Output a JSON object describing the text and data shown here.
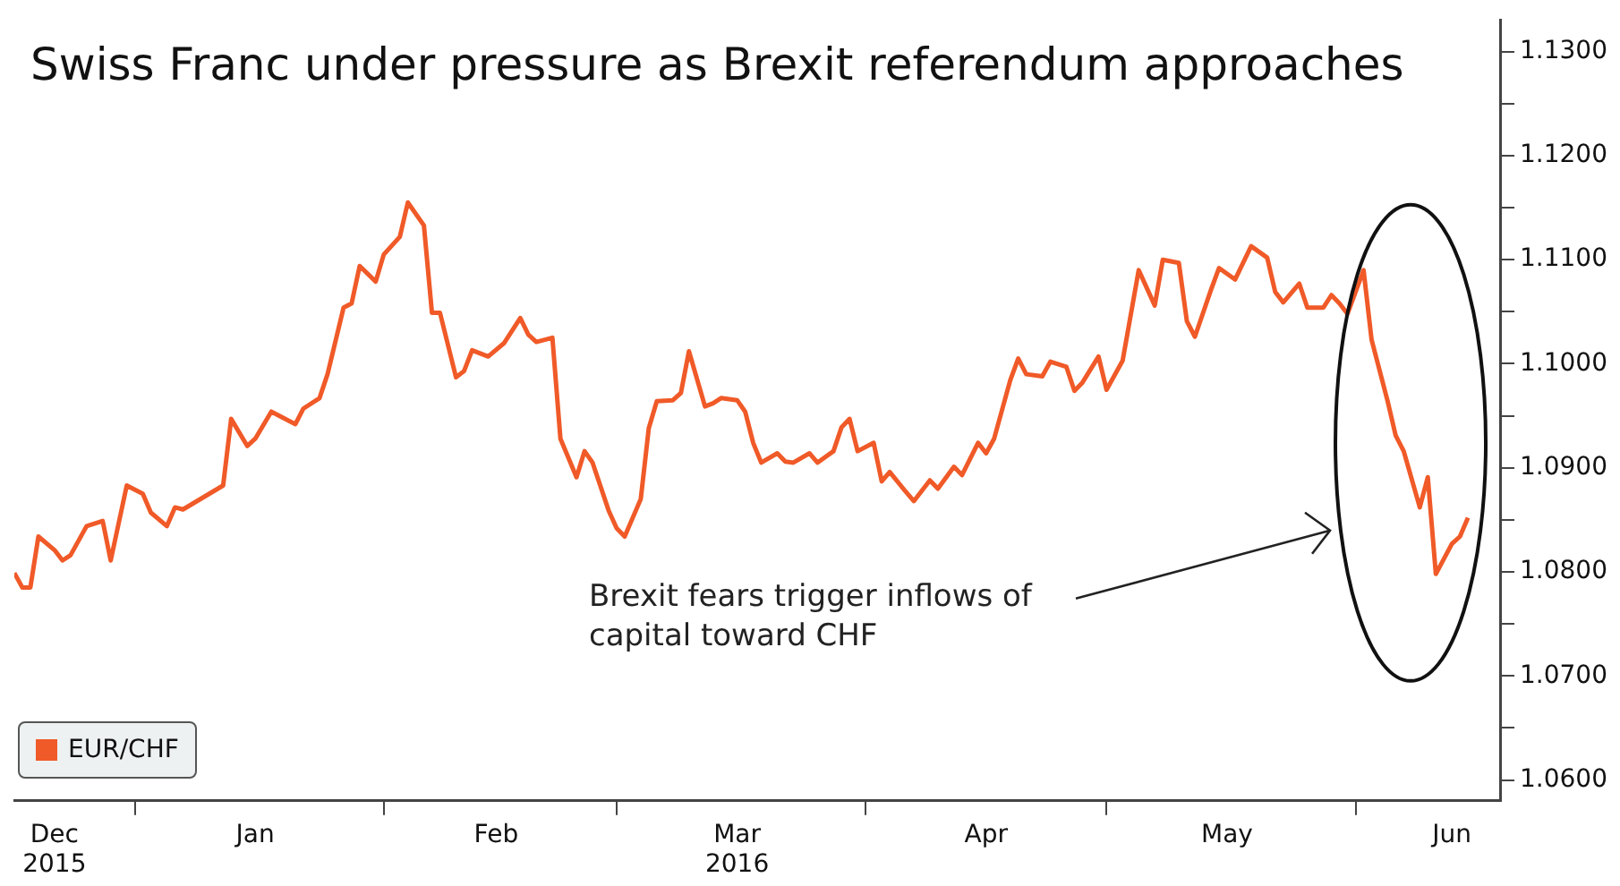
{
  "chart_data": {
    "type": "line",
    "title": "Swiss Franc under pressure as Brexit referendum approaches",
    "x": [
      "2015-12-17",
      "2015-12-18",
      "2015-12-19",
      "2015-12-20",
      "2015-12-22",
      "2015-12-23",
      "2015-12-24",
      "2015-12-26",
      "2015-12-28",
      "2015-12-29",
      "2015-12-31",
      "2016-01-02",
      "2016-01-03",
      "2016-01-05",
      "2016-01-06",
      "2016-01-07",
      "2016-01-12",
      "2016-01-13",
      "2016-01-15",
      "2016-01-16",
      "2016-01-18",
      "2016-01-21",
      "2016-01-22",
      "2016-01-24",
      "2016-01-25",
      "2016-01-27",
      "2016-01-28",
      "2016-01-29",
      "2016-01-31",
      "2016-02-01",
      "2016-02-03",
      "2016-02-04",
      "2016-02-06",
      "2016-02-07",
      "2016-02-08",
      "2016-02-10",
      "2016-02-11",
      "2016-02-12",
      "2016-02-14",
      "2016-02-16",
      "2016-02-18",
      "2016-02-19",
      "2016-02-20",
      "2016-02-22",
      "2016-02-23",
      "2016-02-25",
      "2016-02-26",
      "2016-02-27",
      "2016-02-29",
      "2016-03-01",
      "2016-03-02",
      "2016-03-04",
      "2016-03-05",
      "2016-03-06",
      "2016-03-08",
      "2016-03-09",
      "2016-03-10",
      "2016-03-12",
      "2016-03-13",
      "2016-03-14",
      "2016-03-16",
      "2016-03-17",
      "2016-03-18",
      "2016-03-19",
      "2016-03-21",
      "2016-03-22",
      "2016-03-23",
      "2016-03-25",
      "2016-03-26",
      "2016-03-28",
      "2016-03-29",
      "2016-03-30",
      "2016-03-31",
      "2016-04-02",
      "2016-04-03",
      "2016-04-04",
      "2016-04-06",
      "2016-04-07",
      "2016-04-09",
      "2016-04-10",
      "2016-04-12",
      "2016-04-13",
      "2016-04-15",
      "2016-04-16",
      "2016-04-17",
      "2016-04-19",
      "2016-04-20",
      "2016-04-21",
      "2016-04-23",
      "2016-04-24",
      "2016-04-26",
      "2016-04-27",
      "2016-04-28",
      "2016-04-30",
      "2016-05-01",
      "2016-05-03",
      "2016-05-05",
      "2016-05-07",
      "2016-05-08",
      "2016-05-10",
      "2016-05-11",
      "2016-05-12",
      "2016-05-14",
      "2016-05-15",
      "2016-05-17",
      "2016-05-19",
      "2016-05-21",
      "2016-05-22",
      "2016-05-23",
      "2016-05-25",
      "2016-05-26",
      "2016-05-28",
      "2016-05-29",
      "2016-05-30",
      "2016-05-31",
      "2016-06-02",
      "2016-06-03",
      "2016-06-05",
      "2016-06-06",
      "2016-06-07",
      "2016-06-09",
      "2016-06-10",
      "2016-06-11",
      "2016-06-13",
      "2016-06-14",
      "2016-06-15"
    ],
    "series": [
      {
        "name": "EUR/CHF",
        "color": "#f05a28",
        "values": [
          1.0799,
          1.0785,
          1.0785,
          1.0834,
          1.0821,
          1.0811,
          1.0816,
          1.0844,
          1.0849,
          1.0811,
          1.0883,
          1.0875,
          1.0857,
          1.0844,
          1.0862,
          1.086,
          1.0883,
          1.0947,
          1.0921,
          1.0928,
          1.0954,
          1.0942,
          1.0957,
          1.0967,
          1.099,
          1.1054,
          1.1058,
          1.1094,
          1.1079,
          1.1105,
          1.1122,
          1.1155,
          1.1133,
          1.1049,
          1.1049,
          1.0987,
          1.0993,
          1.1013,
          1.1007,
          1.102,
          1.1044,
          1.1028,
          1.1021,
          1.1025,
          1.0928,
          1.0891,
          1.0916,
          1.0905,
          1.0859,
          1.0842,
          1.0834,
          1.087,
          1.0938,
          1.0964,
          1.0965,
          1.0972,
          1.1012,
          1.0959,
          1.0962,
          1.0967,
          1.0965,
          1.0954,
          1.0924,
          1.0905,
          1.0914,
          1.0906,
          1.0905,
          1.0914,
          1.0905,
          1.0916,
          1.0939,
          1.0947,
          1.0916,
          1.0924,
          1.0887,
          1.0896,
          1.0877,
          1.0868,
          1.0888,
          1.088,
          1.0901,
          1.0893,
          1.0924,
          1.0914,
          1.0928,
          1.0984,
          1.1005,
          1.099,
          1.0988,
          1.1002,
          1.0997,
          1.0974,
          1.0982,
          1.1007,
          1.0975,
          1.1003,
          1.109,
          1.1056,
          1.11,
          1.1097,
          1.1041,
          1.1026,
          1.1071,
          1.1092,
          1.1081,
          1.1113,
          1.1102,
          1.1069,
          1.1059,
          1.1077,
          1.1054,
          1.1054,
          1.1066,
          1.1058,
          1.1048,
          1.109,
          1.1023,
          1.0964,
          1.0931,
          1.0916,
          1.0862,
          1.0891,
          1.0798,
          1.0827,
          1.0834,
          1.0852
        ]
      }
    ],
    "xlim": [
      "2015-12-17",
      "2016-06-19"
    ],
    "xticks": [
      {
        "value": "2015-12-22",
        "label": "Dec\n2015"
      },
      {
        "value": "2016-01-01",
        "label": null
      },
      {
        "value": "2016-01-16",
        "label": "Jan"
      },
      {
        "value": "2016-02-01",
        "label": null
      },
      {
        "value": "2016-02-15",
        "label": "Feb"
      },
      {
        "value": "2016-03-01",
        "label": null
      },
      {
        "value": "2016-03-16",
        "label": "Mar\n2016"
      },
      {
        "value": "2016-04-01",
        "label": null
      },
      {
        "value": "2016-04-16",
        "label": "Apr"
      },
      {
        "value": "2016-05-01",
        "label": null
      },
      {
        "value": "2016-05-16",
        "label": "May"
      },
      {
        "value": "2016-06-01",
        "label": null
      },
      {
        "value": "2016-06-13",
        "label": "Jun"
      }
    ],
    "ylim": [
      1.058,
      1.133
    ],
    "yticks": [
      {
        "value": 1.06,
        "label": "1.0600"
      },
      {
        "value": 1.065,
        "label": null
      },
      {
        "value": 1.07,
        "label": "1.0700"
      },
      {
        "value": 1.075,
        "label": null
      },
      {
        "value": 1.08,
        "label": "1.0800"
      },
      {
        "value": 1.085,
        "label": null
      },
      {
        "value": 1.09,
        "label": "1.0900"
      },
      {
        "value": 1.095,
        "label": null
      },
      {
        "value": 1.1,
        "label": "1.1000"
      },
      {
        "value": 1.105,
        "label": null
      },
      {
        "value": 1.11,
        "label": "1.1100"
      },
      {
        "value": 1.115,
        "label": null
      },
      {
        "value": 1.12,
        "label": "1.1200"
      },
      {
        "value": 1.125,
        "label": null
      },
      {
        "value": 1.13,
        "label": "1.1300"
      }
    ],
    "legend": "bottom left",
    "marker": "none",
    "line_style": "solid",
    "annotations": [
      "Brexit fears trigger inflows of capital toward CHF"
    ]
  }
}
